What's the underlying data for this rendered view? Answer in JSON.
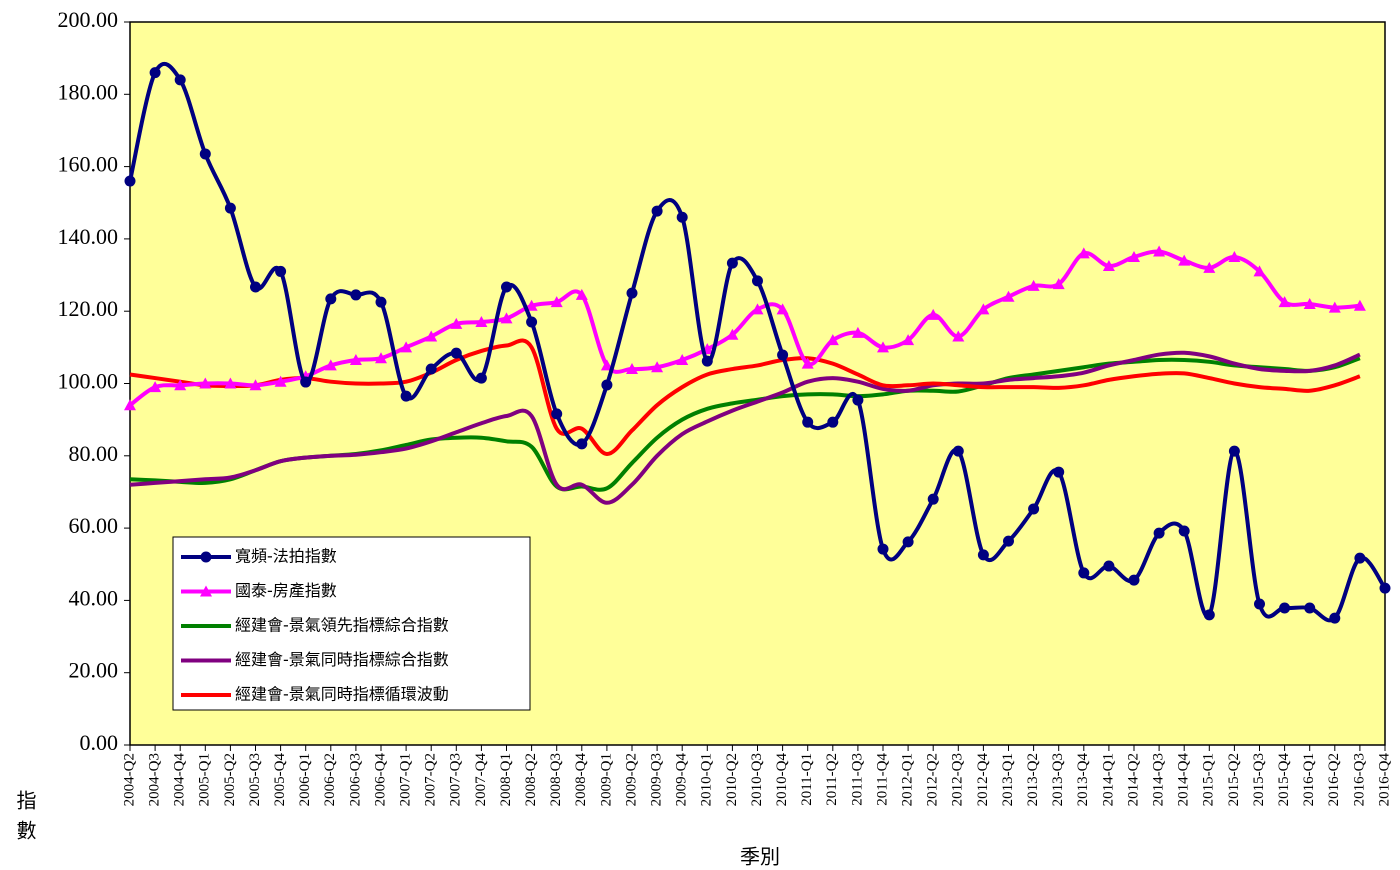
{
  "chart_data": {
    "type": "line",
    "x_label": "季別",
    "y_label": "指數",
    "categories": [
      "2004-Q2",
      "2004-Q3",
      "2004-Q4",
      "2005-Q1",
      "2005-Q2",
      "2005-Q3",
      "2005-Q4",
      "2006-Q1",
      "2006-Q2",
      "2006-Q3",
      "2006-Q4",
      "2007-Q1",
      "2007-Q2",
      "2007-Q3",
      "2007-Q4",
      "2008-Q1",
      "2008-Q2",
      "2008-Q3",
      "2008-Q4",
      "2009-Q1",
      "2009-Q2",
      "2009-Q3",
      "2009-Q4",
      "2010-Q1",
      "2010-Q2",
      "2010-Q3",
      "2010-Q4",
      "2011-Q1",
      "2011-Q2",
      "2011-Q3",
      "2011-Q4",
      "2012-Q1",
      "2012-Q2",
      "2012-Q3",
      "2012-Q4",
      "2013-Q1",
      "2013-Q2",
      "2013-Q3",
      "2013-Q4",
      "2014-Q1",
      "2014-Q2",
      "2014-Q3",
      "2014-Q4",
      "2015-Q1",
      "2015-Q2",
      "2015-Q3",
      "2015-Q4",
      "2016-Q1",
      "2016-Q2",
      "2016-Q3",
      "2016-Q4"
    ],
    "series": [
      {
        "name": "寬頻-法拍指數",
        "color": "#000080",
        "marker": "circle",
        "values": [
          156,
          186,
          184,
          163.5,
          148.5,
          126.7,
          131,
          100.4,
          123.4,
          124.5,
          122.5,
          96.5,
          104,
          108.4,
          101.5,
          126.7,
          117,
          91.6,
          83.3,
          99.6,
          125,
          147.7,
          146,
          106.2,
          133.3,
          128.4,
          107.9,
          89.3,
          89.3,
          95.4,
          54.2,
          56.2,
          68,
          81.3,
          52.6,
          56.4,
          65.3,
          75.5,
          47.6,
          49.5,
          45.6,
          58.6,
          59.2,
          36,
          81.3,
          39,
          37.9,
          37.9,
          35.1,
          51.7,
          43.4
        ]
      },
      {
        "name": "國泰-房產指數",
        "color": "#ff00ff",
        "marker": "triangle",
        "values": [
          94,
          99,
          99.5,
          100,
          100,
          99.5,
          100.5,
          102,
          105,
          106.5,
          107,
          110,
          113,
          116.5,
          117,
          118,
          121.5,
          122.5,
          124.5,
          105,
          104,
          104.5,
          106.5,
          109.5,
          113.5,
          120.5,
          120.5,
          105.5,
          112,
          114,
          110,
          112,
          119,
          113,
          120.5,
          124,
          127,
          127.5,
          136,
          132.5,
          135,
          136.5,
          134,
          132,
          135,
          131,
          122.5,
          122,
          121,
          121.5,
          null
        ]
      },
      {
        "name": "經建會-景氣領先指標綜合指數",
        "color": "#008000",
        "marker": "none",
        "values": [
          73.5,
          73.2,
          72.8,
          72.5,
          73.5,
          76,
          78.5,
          79.5,
          80,
          80.5,
          81.5,
          83,
          84.5,
          85,
          85,
          84,
          82.5,
          71.5,
          71.5,
          71,
          78,
          85,
          90,
          93,
          94.5,
          95.5,
          96.5,
          97,
          97,
          96.5,
          97,
          98,
          98,
          97.8,
          99.5,
          101.5,
          102.5,
          103.5,
          104.5,
          105.5,
          106,
          106.5,
          106.5,
          106,
          105,
          104.5,
          104,
          103.5,
          104.5,
          107,
          null
        ]
      },
      {
        "name": "經建會-景氣同時指標綜合指數",
        "color": "#800080",
        "marker": "none",
        "values": [
          72,
          72.5,
          73,
          73.5,
          74,
          76,
          78.5,
          79.5,
          80,
          80.3,
          81,
          82,
          84,
          86.5,
          89,
          91,
          91,
          72,
          72,
          67,
          72,
          80,
          86,
          89.5,
          92.5,
          95,
          97.5,
          100.5,
          101.5,
          100.5,
          98.5,
          98,
          99.5,
          100,
          100,
          101,
          101.5,
          102,
          103,
          105,
          106.5,
          108,
          108.5,
          107.5,
          105.5,
          104,
          103.5,
          103.5,
          105,
          108,
          null
        ]
      },
      {
        "name": "經建會-景氣同時指標循環波動",
        "color": "#ff0000",
        "marker": "none",
        "values": [
          102.5,
          101.5,
          100.5,
          99.5,
          99.3,
          99.5,
          101,
          101.5,
          100.5,
          100,
          100,
          100.5,
          103,
          106.5,
          109,
          110.5,
          110,
          87.5,
          87.5,
          80.5,
          87,
          94,
          99,
          102.5,
          104,
          105,
          106.5,
          107,
          105.5,
          102.5,
          99.5,
          99.5,
          100,
          99.5,
          99,
          99,
          99,
          98.8,
          99.5,
          101,
          102,
          102.7,
          102.8,
          101.5,
          100,
          99,
          98.5,
          98,
          99.5,
          102,
          null
        ]
      }
    ],
    "ylim": [
      0,
      200
    ],
    "yticks": [
      {
        "value": 0,
        "label": "0.00"
      },
      {
        "value": 20,
        "label": "20.00"
      },
      {
        "value": 40,
        "label": "40.00"
      },
      {
        "value": 60,
        "label": "60.00"
      },
      {
        "value": 80,
        "label": "80.00"
      },
      {
        "value": 100,
        "label": "100.00"
      },
      {
        "value": 120,
        "label": "120.00"
      },
      {
        "value": 140,
        "label": "140.00"
      },
      {
        "value": 160,
        "label": "160.00"
      },
      {
        "value": 180,
        "label": "180.00"
      },
      {
        "value": 200,
        "label": "200.00"
      }
    ],
    "plot_background": "#ffff99",
    "grid": false,
    "legend_position": "lower left"
  }
}
